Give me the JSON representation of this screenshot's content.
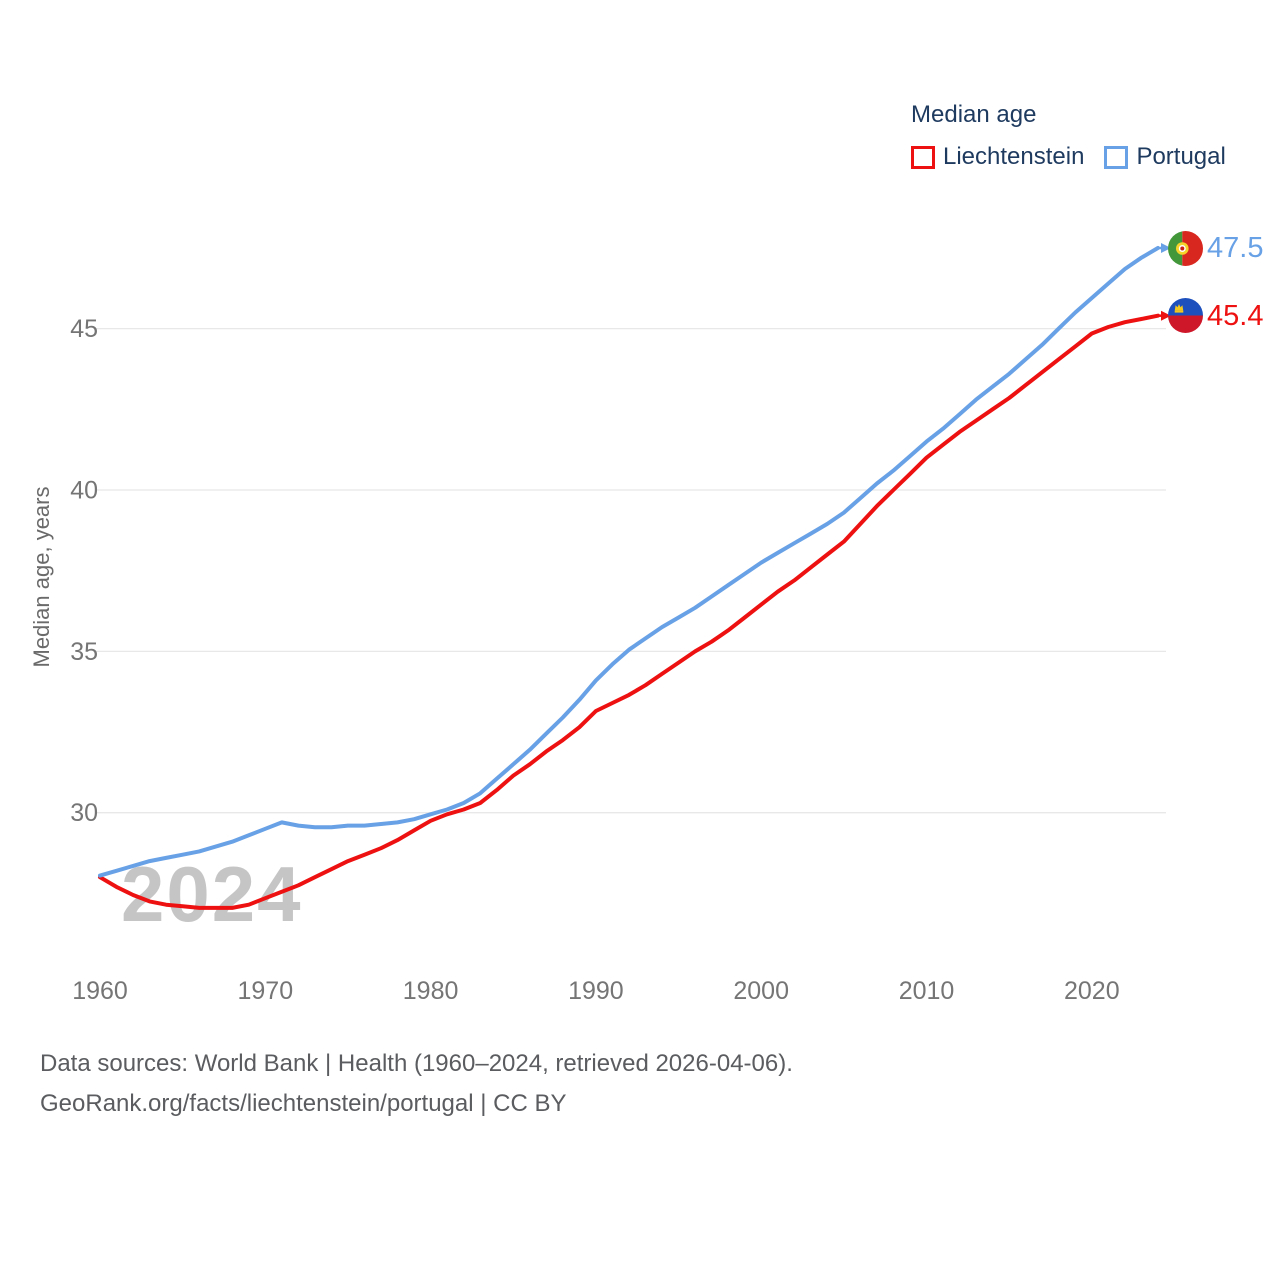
{
  "legend": {
    "title": "Median age",
    "items": [
      {
        "label": "Liechtenstein",
        "series": "liechtenstein"
      },
      {
        "label": "Portugal",
        "series": "portugal"
      }
    ]
  },
  "end_labels": {
    "portugal": "47.5",
    "liechtenstein": "45.4"
  },
  "axes": {
    "y_title": "Median age, years"
  },
  "watermark": "2024",
  "footer": {
    "line1": "Data sources: World Bank | Health (1960–2024, retrieved 2026-04-06).",
    "line2": "GeoRank.org/facts/liechtenstein/portugal | CC BY"
  },
  "colors": {
    "gridline": "#e8e8e8",
    "tick_text": "#757575",
    "legend_text": "#1e3a5f",
    "watermark": "#c5c5c5",
    "footer_text": "#5a5c5f",
    "liechtenstein_red": "#ee1111",
    "portugal_blue": "#68a1e6"
  },
  "chart_data": {
    "type": "line",
    "title": "Median age",
    "xlabel": "",
    "ylabel": "Median age, years",
    "xlim": [
      1960,
      2024
    ],
    "ylim": [
      26.5,
      48.5
    ],
    "yticks": [
      30,
      35,
      40,
      45
    ],
    "xticks": [
      1960,
      1970,
      1980,
      1990,
      2000,
      2010,
      2020
    ],
    "grid": "horizontal",
    "legend_position": "top-right",
    "years": [
      1960,
      1961,
      1962,
      1963,
      1964,
      1965,
      1966,
      1967,
      1968,
      1969,
      1970,
      1971,
      1972,
      1973,
      1974,
      1975,
      1976,
      1977,
      1978,
      1979,
      1980,
      1981,
      1982,
      1983,
      1984,
      1985,
      1986,
      1987,
      1988,
      1989,
      1990,
      1991,
      1992,
      1993,
      1994,
      1995,
      1996,
      1997,
      1998,
      1999,
      2000,
      2001,
      2002,
      2003,
      2004,
      2005,
      2006,
      2007,
      2008,
      2009,
      2010,
      2011,
      2012,
      2013,
      2014,
      2015,
      2016,
      2017,
      2018,
      2019,
      2020,
      2021,
      2022,
      2023,
      2024
    ],
    "series": [
      {
        "id": "liechtenstein",
        "name": "Liechtenstein",
        "color": "#ee1111",
        "end_label": "45.4",
        "values": [
          28.0,
          27.7,
          27.45,
          27.25,
          27.15,
          27.1,
          27.05,
          27.05,
          27.05,
          27.15,
          27.35,
          27.55,
          27.75,
          28.0,
          28.25,
          28.5,
          28.7,
          28.9,
          29.15,
          29.45,
          29.75,
          29.95,
          30.1,
          30.3,
          30.7,
          31.15,
          31.5,
          31.9,
          32.25,
          32.65,
          33.15,
          33.4,
          33.65,
          33.95,
          34.3,
          34.65,
          35.0,
          35.3,
          35.65,
          36.05,
          36.45,
          36.85,
          37.2,
          37.6,
          38.0,
          38.4,
          38.95,
          39.5,
          40.0,
          40.5,
          41.0,
          41.4,
          41.8,
          42.15,
          42.5,
          42.85,
          43.25,
          43.65,
          44.05,
          44.45,
          44.85,
          45.05,
          45.2,
          45.3,
          45.4
        ]
      },
      {
        "id": "portugal",
        "name": "Portugal",
        "color": "#68a1e6",
        "end_label": "47.5",
        "values": [
          28.05,
          28.2,
          28.35,
          28.5,
          28.6,
          28.7,
          28.8,
          28.95,
          29.1,
          29.3,
          29.5,
          29.7,
          29.6,
          29.55,
          29.55,
          29.6,
          29.6,
          29.65,
          29.7,
          29.8,
          29.95,
          30.1,
          30.3,
          30.6,
          31.05,
          31.5,
          31.95,
          32.45,
          32.95,
          33.5,
          34.1,
          34.6,
          35.05,
          35.4,
          35.75,
          36.05,
          36.35,
          36.7,
          37.05,
          37.4,
          37.75,
          38.05,
          38.35,
          38.65,
          38.95,
          39.3,
          39.75,
          40.2,
          40.6,
          41.05,
          41.5,
          41.9,
          42.35,
          42.8,
          43.2,
          43.6,
          44.05,
          44.5,
          45.0,
          45.5,
          45.95,
          46.4,
          46.85,
          47.2,
          47.5
        ]
      }
    ]
  }
}
